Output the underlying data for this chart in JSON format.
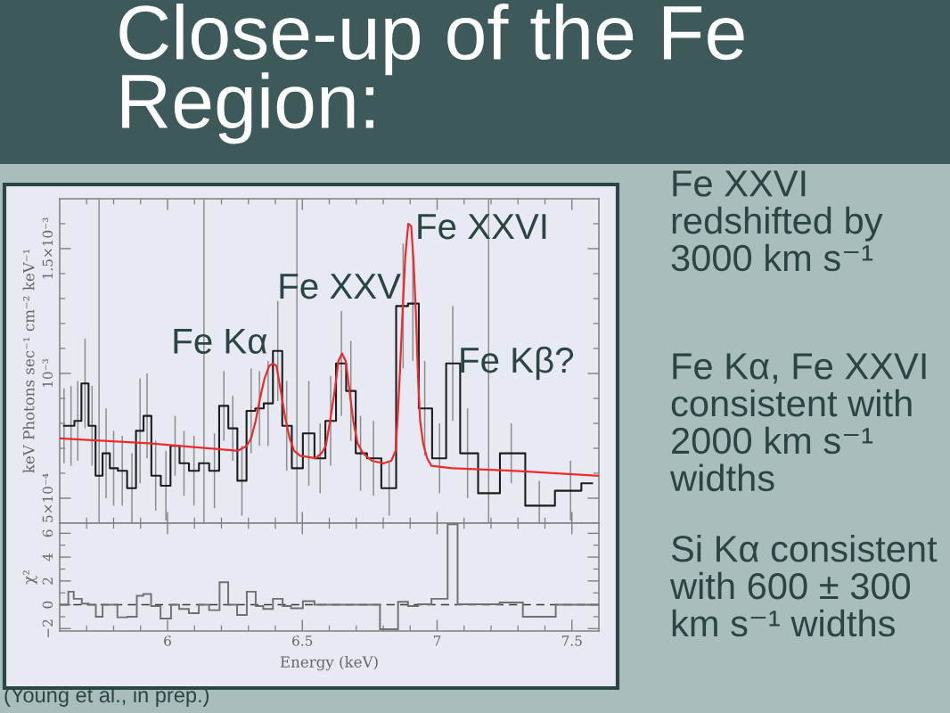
{
  "chart_data": [
    {
      "type": "step",
      "title": "Close-up of the Fe Region:",
      "ylabel": "keV Photons sec⁻¹ cm⁻² keV⁻¹",
      "xlim": [
        5.6,
        7.6
      ],
      "xticks": [
        {
          "value": 5.7,
          "label": null
        },
        {
          "value": 5.8,
          "label": null
        },
        {
          "value": 5.9,
          "label": null
        },
        6,
        {
          "value": 6.1,
          "label": null
        },
        {
          "value": 6.2,
          "label": null
        },
        {
          "value": 6.3,
          "label": null
        },
        {
          "value": 6.4,
          "label": null
        },
        6.5,
        {
          "value": 6.6,
          "label": null
        },
        {
          "value": 6.7,
          "label": null
        },
        {
          "value": 6.8,
          "label": null
        },
        {
          "value": 6.9,
          "label": null
        },
        7,
        {
          "value": 7.1,
          "label": null
        },
        {
          "value": 7.2,
          "label": null
        },
        {
          "value": 7.3,
          "label": null
        },
        {
          "value": 7.4,
          "label": null
        },
        7.5
      ],
      "ylim": [
        0.0004,
        0.0017
      ],
      "yticks": [
        {
          "value": 0.0005,
          "label": "5×10⁻⁴"
        },
        {
          "value": 0.0006,
          "label": null
        },
        {
          "value": 0.0007,
          "label": null
        },
        {
          "value": 0.0008,
          "label": null
        },
        {
          "value": 0.0009,
          "label": null
        },
        {
          "value": 0.001,
          "label": "10⁻³"
        },
        {
          "value": 0.0011,
          "label": null
        },
        {
          "value": 0.0012,
          "label": null
        },
        {
          "value": 0.0013,
          "label": null
        },
        {
          "value": 0.0014,
          "label": null
        },
        {
          "value": 0.0015,
          "label": "1.5×10⁻³"
        },
        {
          "value": 0.0016,
          "label": null
        }
      ],
      "tick_labels": "y",
      "series": [
        {
          "color": "#1c1c1c",
          "x": [
            5.616,
            5.642,
            5.667,
            5.694,
            5.72,
            5.746,
            5.772,
            5.8,
            5.832,
            5.868,
            5.898,
            5.924,
            5.956,
            5.994,
            6.028,
            6.061,
            6.098,
            6.135,
            6.174,
            6.209,
            6.242,
            6.276,
            6.31,
            6.341,
            6.373,
            6.409,
            6.442,
            6.48,
            6.524,
            6.566,
            6.605,
            6.645,
            6.68,
            6.716,
            6.764,
            6.822,
            6.874,
            6.91,
            6.954,
            7.009,
            7.058,
            7.113,
            7.191,
            7.275,
            7.379,
            7.495,
            7.575
          ],
          "values": [
            0.00079,
            0.00079,
            0.00081,
            0.00096,
            0.00079,
            0.00059,
            0.00068,
            0.00062,
            0.00061,
            0.00054,
            0.00077,
            0.00083,
            0.00059,
            0.00055,
            0.00071,
            0.00064,
            0.00061,
            0.00064,
            0.00061,
            0.00087,
            0.00078,
            0.00057,
            0.00085,
            0.00086,
            0.00088,
            0.00109,
            0.00079,
            0.00062,
            0.00076,
            0.00066,
            0.00081,
            0.00104,
            0.00093,
            0.00068,
            0.00066,
            0.00054,
            0.00127,
            0.00128,
            0.00086,
            0.00066,
            0.00104,
            0.00068,
            0.00052,
            0.00068,
            0.00047,
            0.00053,
            0.00056
          ],
          "errors": [
            0.00015,
            0.00016,
            0.00016,
            0.00018,
            0.00016,
            null,
            0.00018,
            0.00015,
            0.00014,
            0.00014,
            0.00021,
            0.00017,
            0.00014,
            0.00014,
            0.00012,
            0.00013,
            0.00014,
            null,
            0.00015,
            0.00014,
            0.00013,
            0.00014,
            0.00017,
            0.00015,
            0.00017,
            0.0002,
            0.00018,
            null,
            0.00021,
            0.00014,
            0.00018,
            0.00021,
            0.0002,
            0.00015,
            0.00015,
            0.00011,
            0.00025,
            0.00023,
            0.00019,
            0.00014,
            0.00023,
            0.00018,
            null,
            0.00012,
            [
              0.0004,
              0.00057
            ],
            0.00012,
            null
          ]
        },
        {
          "type": "line",
          "color": "#ee2a2a",
          "x": [
            5.6,
            5.93,
            6.261,
            6.294,
            6.31,
            6.327,
            6.343,
            6.36,
            6.377,
            6.391,
            6.404,
            6.42,
            6.437,
            6.453,
            6.47,
            6.492,
            6.549,
            6.571,
            6.587,
            6.603,
            6.62,
            6.634,
            6.647,
            6.661,
            6.675,
            6.689,
            6.705,
            6.725,
            6.758,
            6.802,
            6.83,
            6.846,
            6.855,
            6.863,
            6.872,
            6.882,
            6.893,
            6.904,
            6.913,
            6.922,
            6.929,
            6.937,
            6.948,
            6.963,
            6.979,
            7.056,
            7.277,
            7.6
          ],
          "values": [
            0.00074,
            0.00072,
            0.00069,
            0.00071,
            0.00074,
            0.00081,
            0.0009,
            0.00098,
            0.00103,
            0.00104,
            0.00103,
            0.00093,
            0.00082,
            0.00074,
            0.00069,
            0.00067,
            0.00066,
            0.00068,
            0.00071,
            0.00081,
            0.00093,
            0.00105,
            0.00108,
            0.00105,
            0.00093,
            0.00081,
            0.00072,
            0.00068,
            0.00065,
            0.00064,
            0.00065,
            0.00069,
            0.00085,
            0.00103,
            0.00125,
            0.00147,
            0.0016,
            0.00159,
            0.00144,
            0.00122,
            0.00099,
            0.00081,
            0.00072,
            0.00066,
            0.00063,
            0.00062,
            0.00061,
            0.00059
          ]
        }
      ],
      "ref_lines": [
        {
          "axis": "x",
          "value": 5.746,
          "color": "#8e8e8e"
        },
        {
          "axis": "x",
          "value": 6.135,
          "color": "#8e8e8e"
        },
        {
          "axis": "x",
          "value": 6.48,
          "color": "#8e8e8e"
        },
        {
          "axis": "x",
          "value": 7.191,
          "color": "#8e8e8e"
        }
      ],
      "annotations": [
        {
          "text": "Fe Kα",
          "x": 6.372,
          "y": 0.00108
        },
        "Fe XXV",
        "Fe XXVI",
        "Fe Kβ?",
        "Fe XXVI redshifted by 3000 km s⁻¹",
        "Fe Kα, Fe XXVI consistent with 2000 km s⁻¹ widths",
        "Si Kα consistent with 600 ± 300 km s⁻¹ widths",
        "(Young et al., in prep.)"
      ]
    },
    {
      "type": "histogram",
      "xlabel": "Energy (keV)",
      "ylabel": "χ²",
      "xlim": [
        5.6,
        7.6
      ],
      "xticks": [
        {
          "value": 5.7,
          "label": null
        },
        {
          "value": 5.8,
          "label": null
        },
        {
          "value": 5.9,
          "label": null
        },
        6,
        {
          "value": 6.1,
          "label": null
        },
        {
          "value": 6.2,
          "label": null
        },
        {
          "value": 6.3,
          "label": null
        },
        {
          "value": 6.4,
          "label": null
        },
        6.5,
        {
          "value": 6.6,
          "label": null
        },
        {
          "value": 6.7,
          "label": null
        },
        {
          "value": 6.8,
          "label": null
        },
        {
          "value": 6.9,
          "label": null
        },
        7,
        {
          "value": 7.1,
          "label": null
        },
        {
          "value": 7.2,
          "label": null
        },
        {
          "value": 7.3,
          "label": null
        },
        {
          "value": 7.4,
          "label": null
        },
        7.5
      ],
      "ylim": [
        -2.2,
        6.85
      ],
      "yticks": [
        {
          "value": -2,
          "label": "−2"
        },
        {
          "value": -1,
          "label": null
        },
        0,
        {
          "value": 1,
          "label": null
        },
        2,
        {
          "value": 3,
          "label": null
        },
        4,
        {
          "value": 5,
          "label": null
        },
        6
      ],
      "color": "#707070",
      "bins": [
        5.6,
        5.632,
        5.652,
        5.682,
        5.707,
        5.734,
        5.759,
        5.786,
        5.814,
        5.851,
        5.886,
        5.91,
        5.939,
        5.974,
        6.013,
        6.043,
        6.079,
        6.116,
        6.154,
        6.193,
        6.225,
        6.258,
        6.294,
        6.327,
        6.355,
        6.391,
        6.427,
        6.458,
        6.502,
        6.545,
        6.587,
        6.623,
        6.667,
        6.694,
        6.739,
        6.788,
        6.855,
        6.892,
        6.929,
        6.979,
        7.039,
        7.076,
        7.15,
        7.232,
        7.318,
        7.44,
        7.55,
        7.6
      ],
      "values": [
        0.0,
        1.1,
        0.5,
        0.1,
        0.0,
        -1.0,
        0.0,
        0.0,
        -1.05,
        -1.0,
        0.75,
        0.9,
        -0.1,
        -1.15,
        0.0,
        -0.35,
        -0.7,
        0.0,
        -0.45,
        1.9,
        0.0,
        -0.85,
        1.1,
        -0.1,
        -0.35,
        0.5,
        -0.1,
        -0.3,
        0.3,
        0.0,
        0.0,
        0.0,
        0.0,
        0.0,
        0.0,
        -2.05,
        0.25,
        -0.1,
        0.05,
        0.5,
        6.75,
        0.05,
        0.05,
        0.2,
        -1.0,
        0.0,
        0.0
      ],
      "ref_lines": [
        {
          "axis": "y",
          "value": 0,
          "color": "#3a3a3a",
          "line_style": "dashed"
        }
      ]
    }
  ]
}
